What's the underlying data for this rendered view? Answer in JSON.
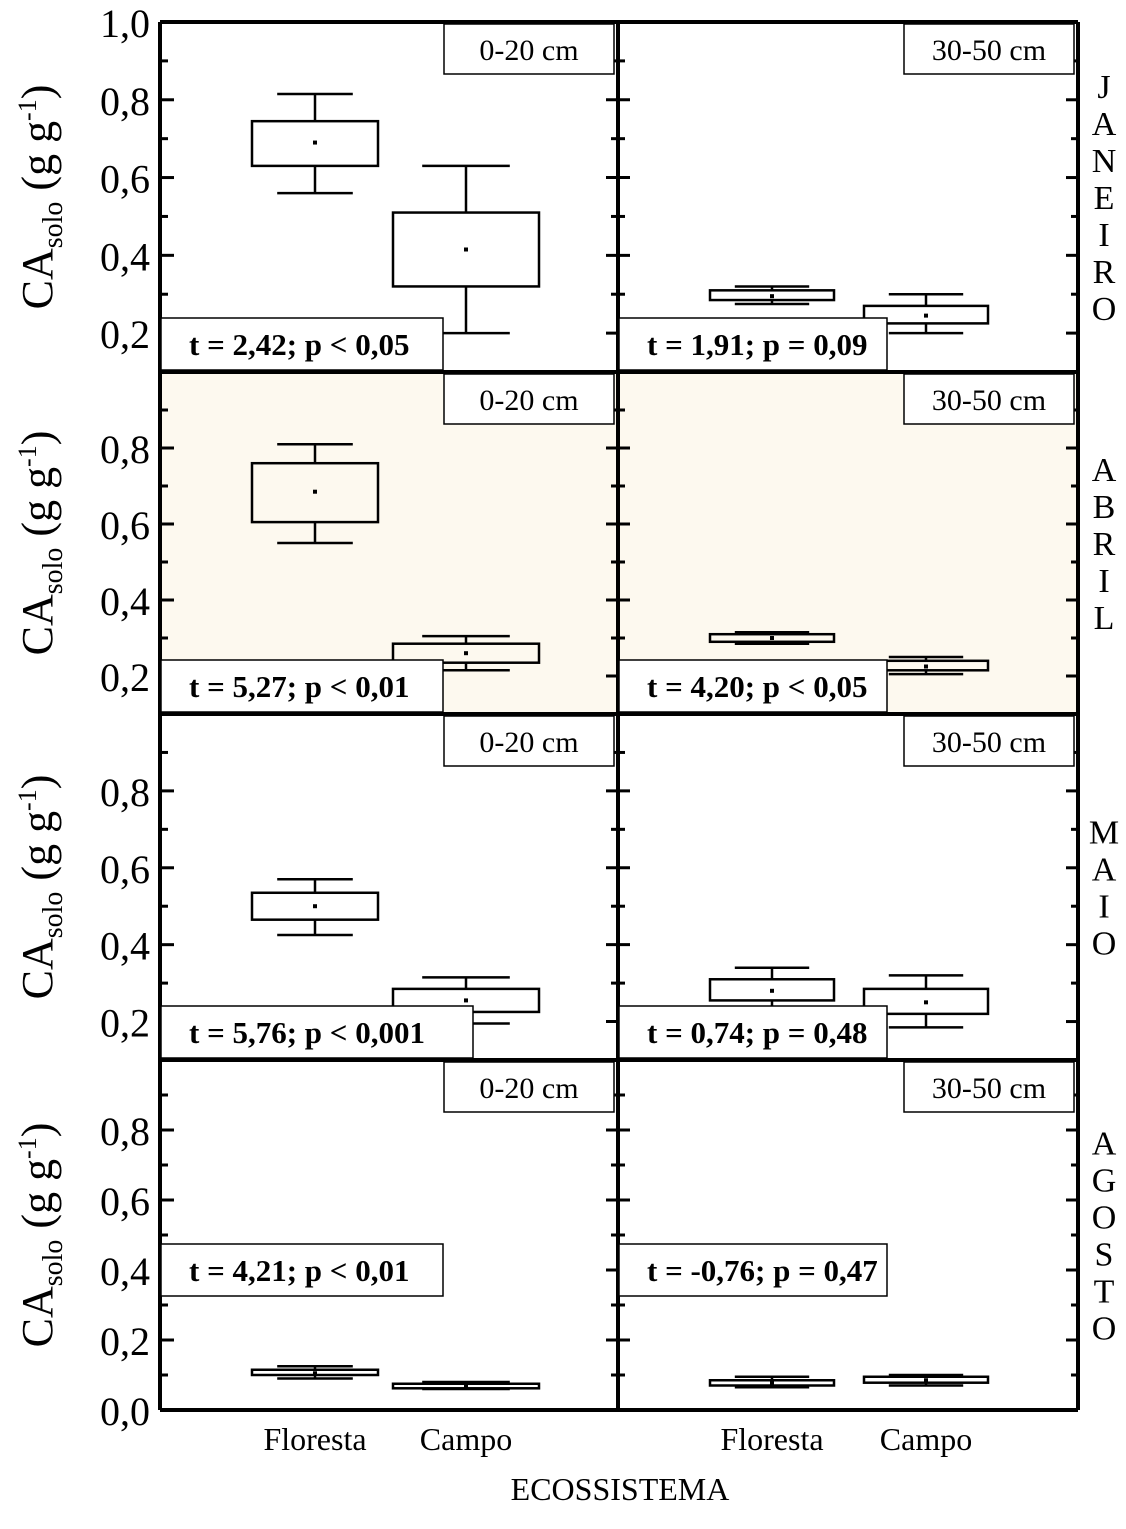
{
  "chart_data": {
    "type": "box",
    "xlabel": "ECOSSISTEMA",
    "ylabel_main": "CA",
    "ylabel_sub": "solo",
    "ylabel_unit_prefix": "(g g",
    "ylabel_unit_sup": "-1",
    "ylabel_unit_suffix": ")",
    "categories": [
      "Floresta",
      "Campo"
    ],
    "depths": [
      "0-20 cm",
      "30-50 cm"
    ],
    "highlight_color": "#fdf9ef",
    "rows": [
      {
        "month": "JANEIRO",
        "ylim": [
          0.1,
          1.0
        ],
        "yticks": [
          "1,0",
          "0,8",
          "0,6",
          "0,4",
          "0,2"
        ],
        "ytick_values": [
          1.0,
          0.8,
          0.6,
          0.4,
          0.2
        ],
        "highlight": false,
        "panels": [
          {
            "depth": "0-20 cm",
            "stat": "t = 2,42; p < 0,05",
            "stat_pos": "bottom",
            "boxes": [
              {
                "category": "Floresta",
                "min": 0.56,
                "q1": 0.63,
                "mean": 0.69,
                "q3": 0.745,
                "max": 0.815
              },
              {
                "category": "Campo",
                "min": 0.2,
                "q1": 0.32,
                "mean": 0.415,
                "q3": 0.51,
                "max": 0.63
              }
            ]
          },
          {
            "depth": "30-50 cm",
            "stat": "t = 1,91; p = 0,09",
            "stat_pos": "bottom",
            "boxes": [
              {
                "category": "Floresta",
                "min": 0.275,
                "q1": 0.285,
                "mean": 0.295,
                "q3": 0.31,
                "max": 0.32
              },
              {
                "category": "Campo",
                "min": 0.2,
                "q1": 0.225,
                "mean": 0.245,
                "q3": 0.27,
                "max": 0.3
              }
            ]
          }
        ]
      },
      {
        "month": "ABRIL",
        "ylim": [
          0.1,
          1.0
        ],
        "yticks": [
          "0,8",
          "0,6",
          "0,4",
          "0,2"
        ],
        "ytick_values": [
          0.8,
          0.6,
          0.4,
          0.2
        ],
        "highlight": true,
        "panels": [
          {
            "depth": "0-20 cm",
            "stat": "t = 5,27; p < 0,01",
            "stat_pos": "bottom",
            "boxes": [
              {
                "category": "Floresta",
                "min": 0.55,
                "q1": 0.605,
                "mean": 0.685,
                "q3": 0.76,
                "max": 0.81
              },
              {
                "category": "Campo",
                "min": 0.215,
                "q1": 0.235,
                "mean": 0.26,
                "q3": 0.285,
                "max": 0.305
              }
            ]
          },
          {
            "depth": "30-50 cm",
            "stat": "t = 4,20; p < 0,05",
            "stat_pos": "bottom",
            "boxes": [
              {
                "category": "Floresta",
                "min": 0.285,
                "q1": 0.29,
                "mean": 0.3,
                "q3": 0.31,
                "max": 0.315
              },
              {
                "category": "Campo",
                "min": 0.205,
                "q1": 0.215,
                "mean": 0.225,
                "q3": 0.24,
                "max": 0.25
              }
            ]
          }
        ]
      },
      {
        "month": "MAIO",
        "ylim": [
          0.1,
          1.0
        ],
        "yticks": [
          "0,8",
          "0,6",
          "0,4",
          "0,2"
        ],
        "ytick_values": [
          0.8,
          0.6,
          0.4,
          0.2
        ],
        "highlight": false,
        "panels": [
          {
            "depth": "0-20 cm",
            "stat": "t =  5,76; p <  0,001",
            "stat_pos": "bottom",
            "boxes": [
              {
                "category": "Floresta",
                "min": 0.425,
                "q1": 0.465,
                "mean": 0.5,
                "q3": 0.535,
                "max": 0.57
              },
              {
                "category": "Campo",
                "min": 0.195,
                "q1": 0.225,
                "mean": 0.255,
                "q3": 0.285,
                "max": 0.315
              }
            ]
          },
          {
            "depth": "30-50 cm",
            "stat": "t = 0,74; p = 0,48",
            "stat_pos": "bottom",
            "boxes": [
              {
                "category": "Floresta",
                "min": 0.22,
                "q1": 0.255,
                "mean": 0.28,
                "q3": 0.31,
                "max": 0.34
              },
              {
                "category": "Campo",
                "min": 0.185,
                "q1": 0.22,
                "mean": 0.25,
                "q3": 0.285,
                "max": 0.32
              }
            ]
          }
        ]
      },
      {
        "month": "AGOSTO",
        "ylim": [
          0.0,
          1.0
        ],
        "yticks": [
          "0,8",
          "0,6",
          "0,4",
          "0,2",
          "0,0"
        ],
        "ytick_values": [
          0.8,
          0.6,
          0.4,
          0.2,
          0.0
        ],
        "highlight": false,
        "panels": [
          {
            "depth": "0-20 cm",
            "stat": "t = 4,21; p <  0,01",
            "stat_pos": "middle",
            "boxes": [
              {
                "category": "Floresta",
                "min": 0.09,
                "q1": 0.1,
                "mean": 0.105,
                "q3": 0.115,
                "max": 0.125
              },
              {
                "category": "Campo",
                "min": 0.06,
                "q1": 0.062,
                "mean": 0.068,
                "q3": 0.075,
                "max": 0.08
              }
            ]
          },
          {
            "depth": "30-50 cm",
            "stat": "t = -0,76; p = 0,47",
            "stat_pos": "middle",
            "boxes": [
              {
                "category": "Floresta",
                "min": 0.065,
                "q1": 0.07,
                "mean": 0.078,
                "q3": 0.085,
                "max": 0.095
              },
              {
                "category": "Campo",
                "min": 0.07,
                "q1": 0.078,
                "mean": 0.085,
                "q3": 0.095,
                "max": 0.1
              }
            ]
          }
        ]
      }
    ]
  }
}
